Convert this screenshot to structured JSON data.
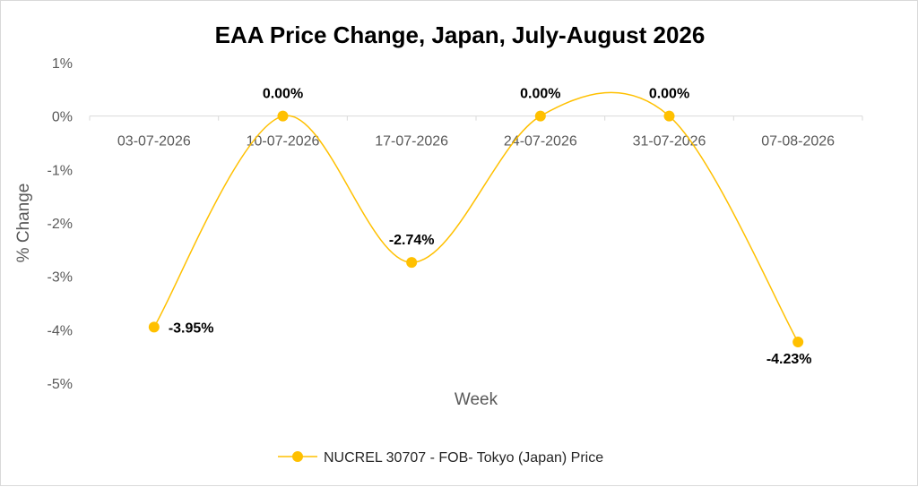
{
  "chart_data": {
    "type": "line",
    "title": "EAA Price Change, Japan, July-August 2026",
    "xlabel": "Week",
    "ylabel": "% Change",
    "categories": [
      "03-07-2026",
      "10-07-2026",
      "17-07-2026",
      "24-07-2026",
      "31-07-2026",
      "07-08-2026"
    ],
    "series": [
      {
        "name": "NUCREL 30707 - FOB- Tokyo (Japan) Price",
        "values": [
          -3.95,
          0.0,
          -2.74,
          0.0,
          0.0,
          -4.23
        ],
        "labels": [
          "-3.95%",
          "0.00%",
          "-2.74%",
          "0.00%",
          "0.00%",
          "-4.23%"
        ],
        "color": "#FFC000"
      }
    ],
    "ylim": [
      -5,
      1
    ],
    "yticks": [
      "1%",
      "0%",
      "-1%",
      "-2%",
      "-3%",
      "-4%",
      "-5%"
    ],
    "ytick_values": [
      1,
      0,
      -1,
      -2,
      -3,
      -4,
      -5
    ],
    "grid": false,
    "smooth": true,
    "legend_position": "bottom"
  }
}
